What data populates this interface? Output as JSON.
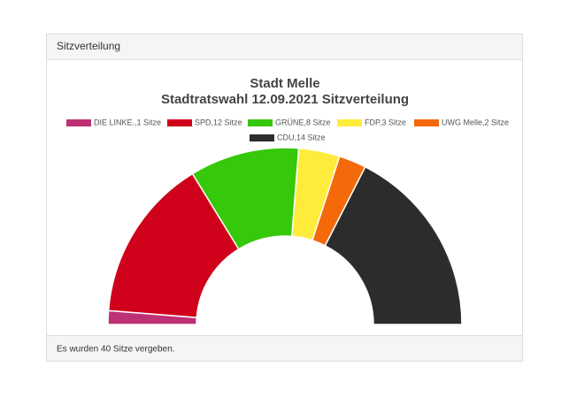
{
  "header": {
    "title": "Sitzverteilung"
  },
  "footer": {
    "text": "Es wurden 40 Sitze vergeben."
  },
  "chart_data": {
    "type": "half-donut",
    "title": [
      "Stadt Melle",
      "Stadtratswahl 12.09.2021 Sitzverteilung"
    ],
    "categories": [
      "DIE LINKE.,1 Sitze",
      "SPD,12 Sitze",
      "GRÜNE,8 Sitze",
      "FDP,3 Sitze",
      "UWG Melle,2 Sitze",
      "CDU,14 Sitze"
    ],
    "values": [
      1,
      12,
      8,
      3,
      2,
      14
    ],
    "colors": [
      "#be3074",
      "#d0021b",
      "#36c80a",
      "#ffeb3b",
      "#f46a0a",
      "#2c2c2c"
    ]
  }
}
